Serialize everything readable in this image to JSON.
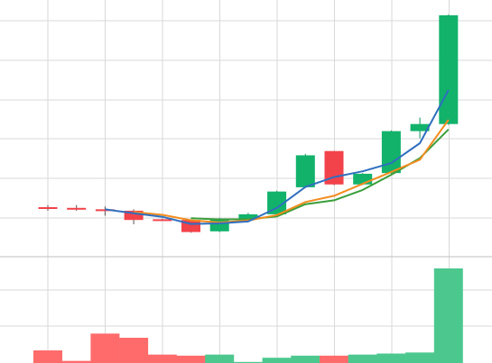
{
  "chart_data": {
    "type": "candlestick",
    "grid": true,
    "legend": "none",
    "colors": {
      "up": "#12b26b",
      "down": "#f2424a",
      "volume_up": "#4cc88f",
      "volume_down": "#ff6b6b",
      "ma_fast": "#2f6fbf",
      "ma_mid": "#f28c1e",
      "ma_slow": "#3a9e3a",
      "grid": "#d9d9d9"
    },
    "price_ylim": [
      0,
      100
    ],
    "volume_ylim": [
      0,
      100
    ],
    "candles": [
      {
        "open": 60.0,
        "high": 61.5,
        "low": 57.5,
        "close": 59.5
      },
      {
        "open": 59.5,
        "high": 61.5,
        "low": 57.5,
        "close": 58.5
      },
      {
        "open": 58.5,
        "high": 60.5,
        "low": 54.0,
        "close": 57.5
      },
      {
        "open": 57.5,
        "high": 58.5,
        "low": 48.0,
        "close": 51.0
      },
      {
        "open": 51.5,
        "high": 52.0,
        "low": 50.5,
        "close": 51.2
      },
      {
        "open": 51.0,
        "high": 51.5,
        "low": 42.0,
        "close": 42.5
      },
      {
        "open": 43.0,
        "high": 52.5,
        "low": 42.5,
        "close": 52.0
      },
      {
        "open": 52.0,
        "high": 56.0,
        "low": 51.5,
        "close": 55.0
      },
      {
        "open": 55.0,
        "high": 71.5,
        "low": 54.5,
        "close": 71.0
      },
      {
        "open": 74.0,
        "high": 97.5,
        "low": 73.5,
        "close": 96.5
      },
      {
        "open": 99.5,
        "high": 99.5,
        "low": 75.5,
        "close": 76.0
      },
      {
        "open": 76.0,
        "high": 84.0,
        "low": 75.5,
        "close": 83.5
      },
      {
        "open": 84.0,
        "high": 114.0,
        "low": 83.5,
        "close": 113.5
      },
      {
        "open": 113.5,
        "high": 123.0,
        "low": 108.5,
        "close": 118.5
      },
      {
        "open": 118.5,
        "high": 195.5,
        "low": 118.0,
        "close": 195.0
      }
    ],
    "ma_fast": [
      null,
      null,
      58.5,
      55.7,
      53.2,
      48.2,
      48.6,
      49.9,
      59.4,
      74.2,
      81.2,
      85.2,
      91.0,
      105.0,
      142.4
    ],
    "ma_mid": [
      null,
      null,
      null,
      56.6,
      54.6,
      50.8,
      49.2,
      50.6,
      54.4,
      63.6,
      68.0,
      76.4,
      84.8,
      93.4,
      121.5
    ],
    "ma_slow": [
      null,
      null,
      null,
      null,
      null,
      52.2,
      51.4,
      51.5,
      53.5,
      62.1,
      64.8,
      72.1,
      82.8,
      94.5,
      114.7
    ],
    "volume": [
      12,
      2,
      28,
      24,
      8,
      7,
      8,
      1,
      5,
      7,
      7,
      8,
      9,
      10,
      90
    ]
  }
}
